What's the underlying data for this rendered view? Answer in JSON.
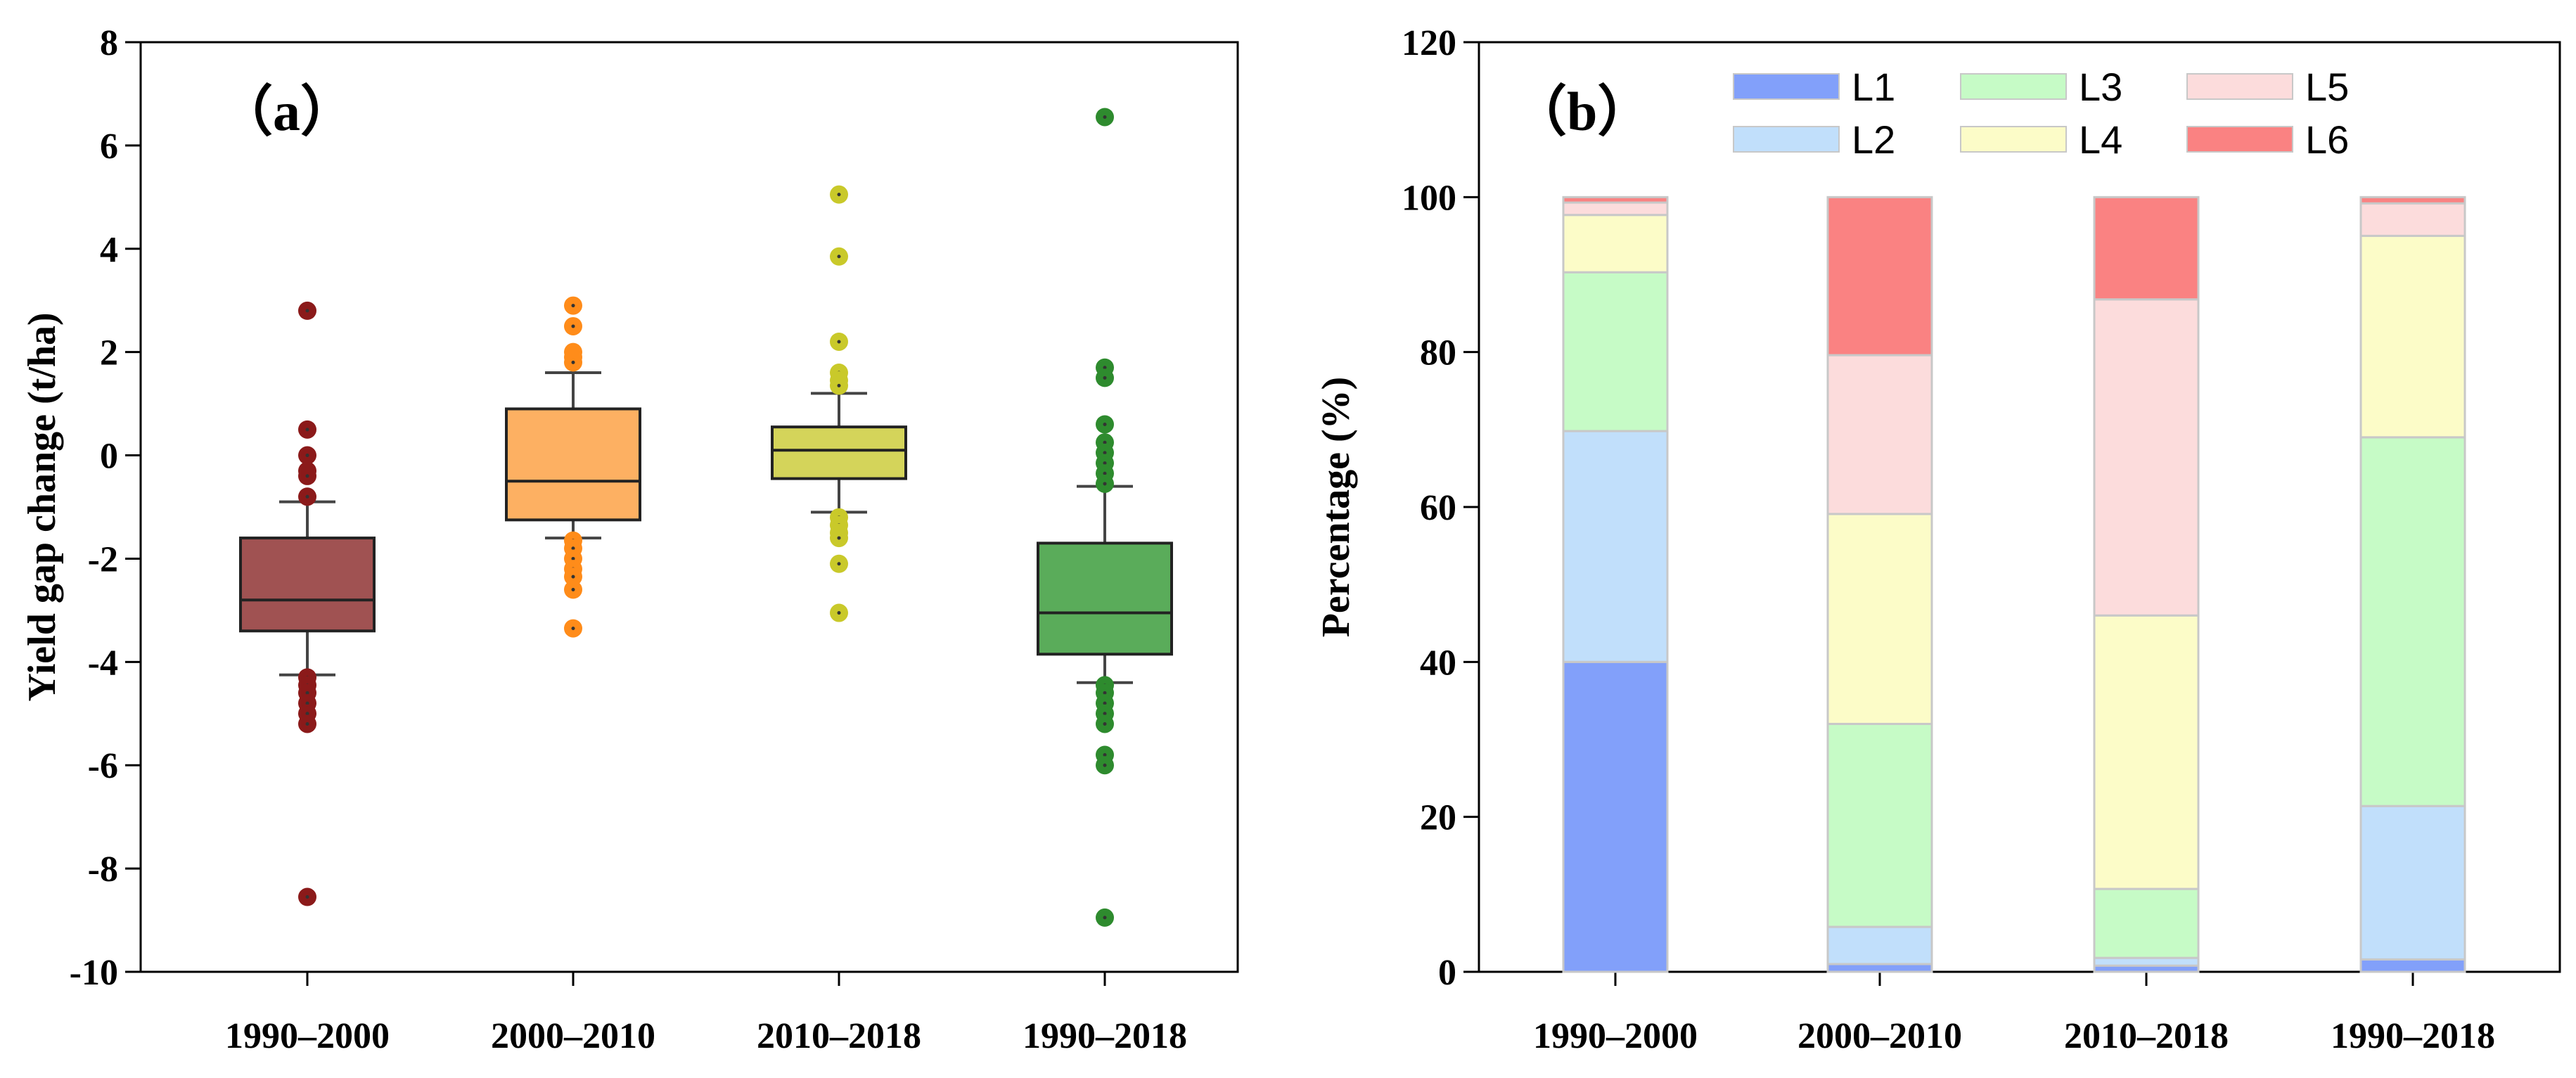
{
  "chart_data": [
    {
      "type": "box",
      "panel_label": "（a）",
      "ylabel": "Yield gap change (t/ha)",
      "ylim": [
        -10,
        8
      ],
      "yticks": [
        -10,
        -8,
        -6,
        -4,
        -2,
        0,
        2,
        4,
        6,
        8
      ],
      "categories": [
        "1990–2000",
        "2000–2010",
        "2010–2018",
        "1990–2018"
      ],
      "boxes": [
        {
          "category": "1990–2000",
          "color": "#a05252",
          "point_color": "#8b1a1a",
          "whisker_low": -4.25,
          "q1": -3.4,
          "median": -2.8,
          "q3": -1.6,
          "whisker_high": -0.9,
          "outliers": [
            2.8,
            0.5,
            0.0,
            -0.3,
            -0.4,
            -0.8,
            -4.3,
            -4.45,
            -4.6,
            -4.8,
            -5.0,
            -5.2,
            -8.55
          ]
        },
        {
          "category": "2000–2010",
          "color": "#fdb062",
          "point_color": "#ff8c1a",
          "whisker_low": -1.6,
          "q1": -1.25,
          "median": -0.5,
          "q3": 0.9,
          "whisker_high": 1.6,
          "outliers": [
            2.9,
            2.5,
            2.0,
            1.9,
            1.8,
            -1.65,
            -1.8,
            -2.0,
            -2.2,
            -2.35,
            -2.6,
            -3.35
          ]
        },
        {
          "category": "2010–2018",
          "color": "#d4d45a",
          "point_color": "#c9c92a",
          "whisker_low": -1.1,
          "q1": -0.45,
          "median": 0.1,
          "q3": 0.55,
          "whisker_high": 1.2,
          "outliers": [
            5.05,
            3.85,
            2.2,
            1.6,
            1.45,
            1.35,
            -1.2,
            -1.35,
            -1.5,
            -1.6,
            -2.1,
            -3.05
          ]
        },
        {
          "category": "1990–2018",
          "color": "#5aac5a",
          "point_color": "#2e8b2e",
          "whisker_low": -4.4,
          "q1": -3.85,
          "median": -3.05,
          "q3": -1.7,
          "whisker_high": -0.6,
          "outliers": [
            6.55,
            1.7,
            1.5,
            0.6,
            0.25,
            0.05,
            -0.15,
            -0.35,
            -0.55,
            -4.45,
            -4.6,
            -4.8,
            -5.0,
            -5.2,
            -5.8,
            -6.0,
            -8.95
          ]
        }
      ]
    },
    {
      "type": "stacked_bar",
      "panel_label": "（b）",
      "ylabel": "Percentage (%)",
      "ylim": [
        0,
        120
      ],
      "yticks": [
        0,
        20,
        40,
        60,
        80,
        100,
        120
      ],
      "categories": [
        "1990–2000",
        "2000–2010",
        "2010–2018",
        "1990–2018"
      ],
      "legend_location": "top",
      "series": [
        {
          "name": "L1",
          "color": "#82a0fa",
          "values": [
            40.0,
            1.0,
            0.8,
            1.6
          ]
        },
        {
          "name": "L2",
          "color": "#c1dffb",
          "values": [
            29.8,
            4.8,
            1.0,
            19.8
          ]
        },
        {
          "name": "L3",
          "color": "#c6fbc6",
          "values": [
            20.5,
            26.2,
            8.9,
            47.6
          ]
        },
        {
          "name": "L4",
          "color": "#fcfcc8",
          "values": [
            7.4,
            27.1,
            35.3,
            26.0
          ]
        },
        {
          "name": "L5",
          "color": "#fcdcdc",
          "values": [
            1.6,
            20.5,
            40.8,
            4.2
          ]
        },
        {
          "name": "L6",
          "color": "#fa8282",
          "values": [
            0.7,
            20.4,
            13.2,
            0.8
          ]
        }
      ]
    }
  ]
}
